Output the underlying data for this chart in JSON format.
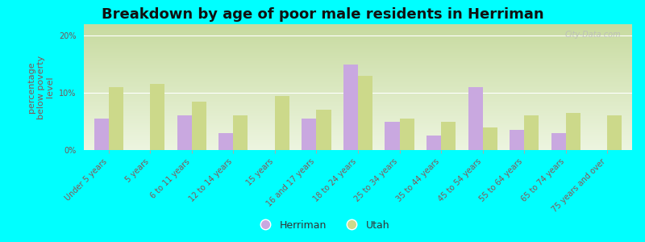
{
  "title": "Breakdown by age of poor male residents in Herriman",
  "ylabel": "percentage\nbelow poverty\nlevel",
  "categories": [
    "Under 5 years",
    "5 years",
    "6 to 11 years",
    "12 to 14 years",
    "15 years",
    "16 and 17 years",
    "18 to 24 years",
    "25 to 34 years",
    "35 to 44 years",
    "45 to 54 years",
    "55 to 64 years",
    "65 to 74 years",
    "75 years and over"
  ],
  "herriman": [
    5.5,
    0.0,
    6.0,
    3.0,
    0.0,
    5.5,
    15.0,
    5.0,
    2.5,
    11.0,
    3.5,
    3.0,
    0.0
  ],
  "utah": [
    11.0,
    11.5,
    8.5,
    6.0,
    9.5,
    7.0,
    13.0,
    5.5,
    5.0,
    4.0,
    6.0,
    6.5,
    6.0
  ],
  "herriman_color": "#c9a8e0",
  "utah_color": "#ccd98a",
  "background_color": "#00ffff",
  "plot_bg_top": "#edf5e0",
  "plot_bg_bottom": "#c8dba0",
  "ylim": [
    0,
    22
  ],
  "yticks": [
    0,
    10,
    20
  ],
  "ytick_labels": [
    "0%",
    "10%",
    "20%"
  ],
  "title_fontsize": 13,
  "axis_label_fontsize": 8,
  "tick_fontsize": 7,
  "legend_fontsize": 9,
  "watermark": "City-Data.com",
  "bar_width": 0.35
}
